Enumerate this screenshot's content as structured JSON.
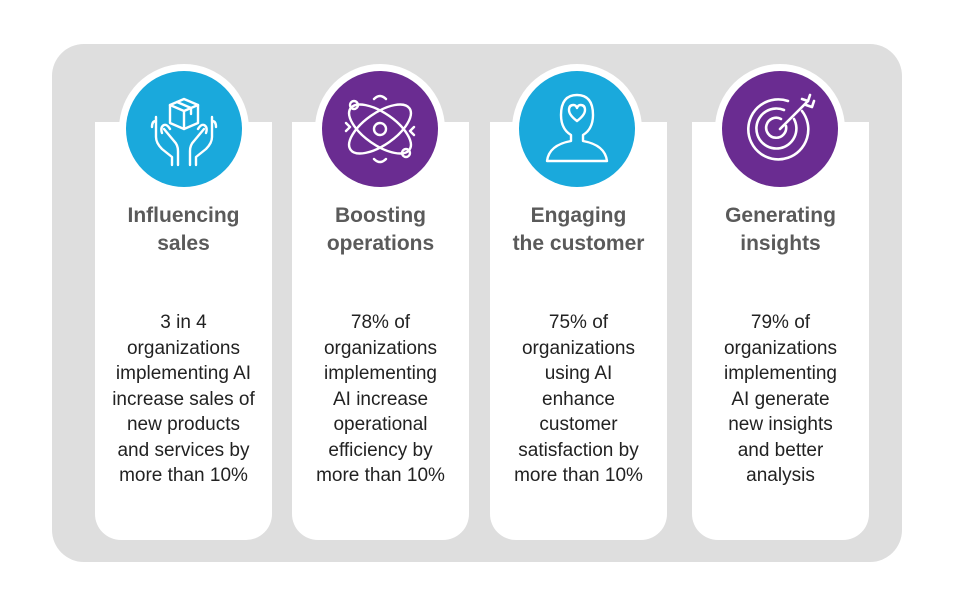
{
  "colors": {
    "blue": "#1aa9dc",
    "purple": "#6a2c91",
    "panel": "#dedede"
  },
  "cards": [
    {
      "icon": "hands-holding-box-icon",
      "title": "Influencing\nsales",
      "text": "3 in 4\norganizations\nimplementing AI\nincrease sales of\nnew products\nand services by\nmore than 10%"
    },
    {
      "icon": "orbit-gears-icon",
      "title": "Boosting\noperations",
      "text": "78% of\norganizations\nimplementing\nAI increase\noperational\nefficiency by\nmore than 10%"
    },
    {
      "icon": "person-heart-icon",
      "title": "Engaging\nthe customer",
      "text": "75% of\norganizations\nusing AI\nenhance\ncustomer\nsatisfaction by\nmore than 10%"
    },
    {
      "icon": "target-arrow-icon",
      "title": "Generating\ninsights",
      "text": "79% of\norganizations\nimplementing\nAI generate\nnew insights\nand better\nanalysis"
    }
  ]
}
